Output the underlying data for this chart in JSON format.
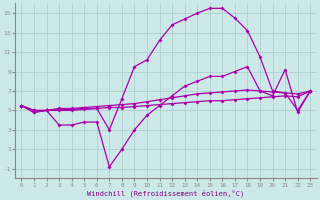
{
  "xlabel": "Windchill (Refroidissement éolien,°C)",
  "background_color": "#cce8e8",
  "grid_color": "#aacccc",
  "line_color": "#aa00aa",
  "xlim": [
    -0.5,
    23.5
  ],
  "ylim": [
    -2,
    16
  ],
  "yticks": [
    -1,
    1,
    3,
    5,
    7,
    9,
    11,
    13,
    15
  ],
  "xticks": [
    0,
    1,
    2,
    3,
    4,
    5,
    6,
    7,
    8,
    9,
    10,
    11,
    12,
    13,
    14,
    15,
    16,
    17,
    18,
    19,
    20,
    21,
    22,
    23
  ],
  "line1_x": [
    0,
    1,
    2,
    3,
    4,
    5,
    6,
    7,
    8,
    9,
    10,
    11,
    12,
    13,
    14,
    15,
    16,
    17,
    18,
    19,
    20,
    21,
    22,
    23
  ],
  "line1_y": [
    5.5,
    4.8,
    5.0,
    5.0,
    5.0,
    5.1,
    5.2,
    3.0,
    6.2,
    9.5,
    10.2,
    12.2,
    13.8,
    14.4,
    15.0,
    15.5,
    15.5,
    14.5,
    13.2,
    10.5,
    7.0,
    6.8,
    5.0,
    7.0
  ],
  "line2_x": [
    0,
    1,
    2,
    3,
    4,
    5,
    6,
    7,
    8,
    9,
    10,
    11,
    12,
    13,
    14,
    15,
    16,
    17,
    18,
    19,
    20,
    21,
    22,
    23
  ],
  "line2_y": [
    5.5,
    4.8,
    5.0,
    3.5,
    3.5,
    3.8,
    3.8,
    -0.8,
    1.0,
    3.0,
    4.5,
    5.5,
    6.5,
    7.5,
    8.0,
    8.5,
    8.5,
    9.0,
    9.5,
    7.0,
    6.5,
    9.2,
    4.8,
    7.0
  ],
  "line3_x": [
    0,
    1,
    2,
    3,
    4,
    5,
    6,
    7,
    8,
    9,
    10,
    11,
    12,
    13,
    14,
    15,
    16,
    17,
    18,
    19,
    20,
    21,
    22,
    23
  ],
  "line3_y": [
    5.5,
    5.0,
    5.0,
    5.2,
    5.2,
    5.3,
    5.4,
    5.5,
    5.6,
    5.7,
    5.9,
    6.1,
    6.3,
    6.5,
    6.7,
    6.8,
    6.9,
    7.0,
    7.1,
    7.0,
    6.9,
    6.8,
    6.7,
    7.0
  ],
  "line4_x": [
    0,
    1,
    2,
    3,
    4,
    5,
    6,
    7,
    8,
    9,
    10,
    11,
    12,
    13,
    14,
    15,
    16,
    17,
    18,
    19,
    20,
    21,
    22,
    23
  ],
  "line4_y": [
    5.5,
    5.0,
    5.0,
    5.1,
    5.1,
    5.2,
    5.2,
    5.3,
    5.3,
    5.4,
    5.5,
    5.6,
    5.7,
    5.8,
    5.9,
    6.0,
    6.0,
    6.1,
    6.2,
    6.3,
    6.4,
    6.5,
    6.4,
    7.0
  ]
}
